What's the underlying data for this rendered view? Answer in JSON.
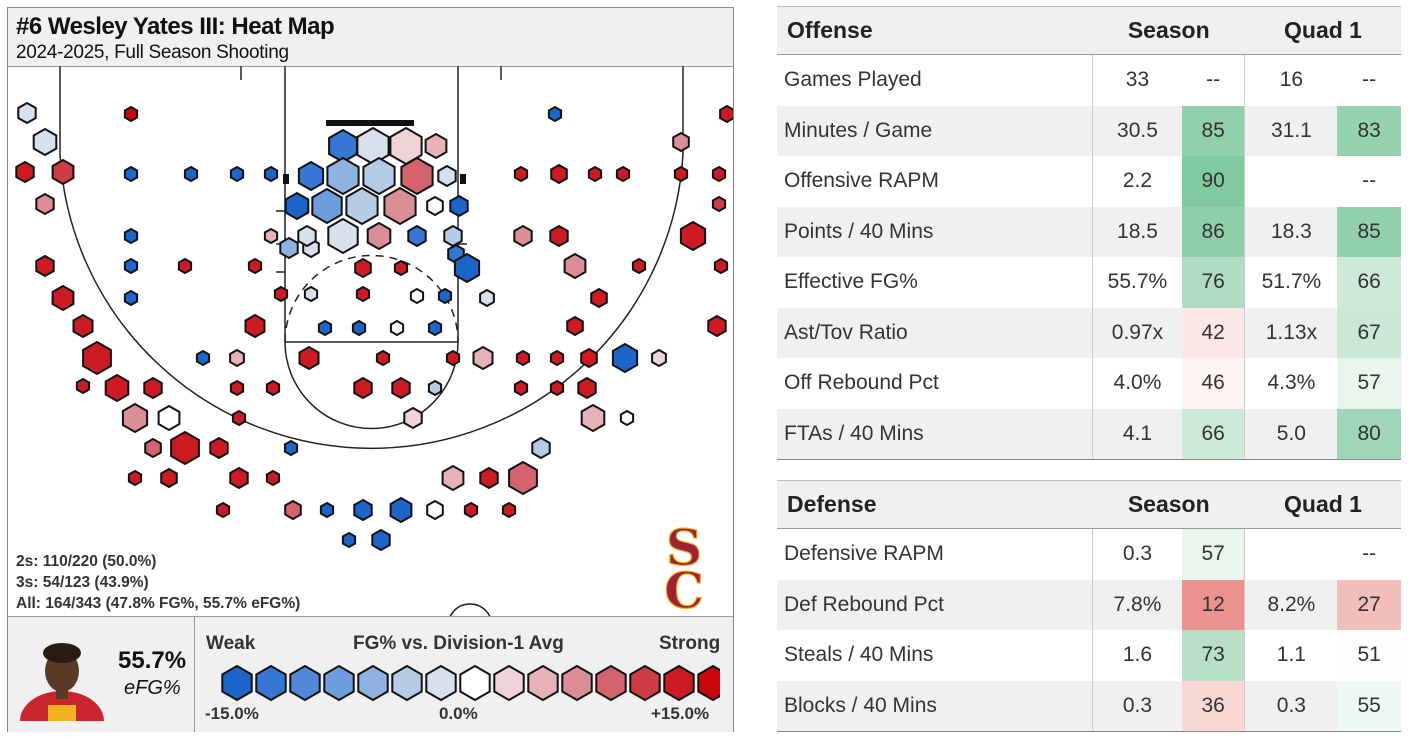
{
  "heatmap": {
    "title": "#6 Wesley Yates III: Heat Map",
    "subtitle": "2024-2025, Full Season Shooting",
    "stat_2s": "2s: 110/220 (50.0%)",
    "stat_3s": "3s: 54/123 (43.9%)",
    "stat_all": "All: 164/343 (47.8% FG%, 55.7% eFG%)",
    "team_logo": "SC",
    "efg_value": "55.7%",
    "efg_label": "eFG%",
    "legend_title": "FG% vs. Division-1 Avg",
    "legend_weak": "Weak",
    "legend_strong": "Strong",
    "legend_min": "-15.0%",
    "legend_mid": "0.0%",
    "legend_max": "+15.0%",
    "palette": [
      "#1d66c9",
      "#3677d3",
      "#5288d8",
      "#6e9cdd",
      "#90b2e0",
      "#b5cbe6",
      "#d6e0ee",
      "#ffffff",
      "#efd3d8",
      "#e6b2b8",
      "#dc8e97",
      "#d5636d",
      "#d03c44",
      "#cc1b22",
      "#c8070e"
    ],
    "colors": {
      "cold": "#1d66c9",
      "hot": "#c8070e",
      "logo": "#9d2235",
      "logo_outline": "#f2b320"
    }
  },
  "chart_data": {
    "type": "heatmap",
    "title": "#6 Wesley Yates III: Heat Map",
    "subtitle": "2024-2025, Full Season Shooting",
    "color_scale": {
      "label": "FG% vs. Division-1 Avg",
      "min": -15.0,
      "max": 15.0,
      "unit": "%"
    },
    "bins_note": "Each hexagon's color encodes FG% vs. Division-1 average; size encodes shot volume.",
    "bins": [
      {
        "zone": "left-corner-deep",
        "v": -3
      },
      {
        "zone": "left-wing-deep",
        "v": 15
      },
      {
        "zone": "top-deep-left",
        "v": 15
      },
      {
        "zone": "top-deep-center",
        "v": -15
      },
      {
        "zone": "right-wing-deep",
        "v": 15
      },
      {
        "zone": "left-corner-3",
        "v": 3
      },
      {
        "zone": "left-corner-3b",
        "v": 12
      },
      {
        "zone": "left-mid",
        "v": -12
      },
      {
        "zone": "paint-left",
        "v": -15
      },
      {
        "zone": "rim",
        "v": -8
      },
      {
        "zone": "rim-right",
        "v": 9
      },
      {
        "zone": "right-mid",
        "v": 14
      },
      {
        "zone": "right-corner-3",
        "v": 12
      },
      {
        "zone": "left-wing-3",
        "v": 15
      },
      {
        "zone": "left-elbow",
        "v": -12
      },
      {
        "zone": "ft-line",
        "v": -10
      },
      {
        "zone": "right-elbow",
        "v": -15
      },
      {
        "zone": "right-wing-3",
        "v": 15
      },
      {
        "zone": "top-key-3",
        "v": 13
      },
      {
        "zone": "top-3-left",
        "v": -12
      },
      {
        "zone": "top-3-right",
        "v": -13
      },
      {
        "zone": "top-3-center",
        "v": 14
      }
    ]
  },
  "offense": {
    "header": {
      "label": "Offense",
      "season": "Season",
      "quad": "Quad 1"
    },
    "rows": [
      {
        "label": "Games Played",
        "season": "33",
        "season_pct": "--",
        "quad": "16",
        "quad_pct": "--"
      },
      {
        "label": "Minutes / Game",
        "season": "30.5",
        "season_pct": "85",
        "quad": "31.1",
        "quad_pct": "83"
      },
      {
        "label": "Offensive RAPM",
        "season": "2.2",
        "season_pct": "90",
        "quad": "",
        "quad_pct": "--"
      },
      {
        "label": "Points / 40 Mins",
        "season": "18.5",
        "season_pct": "86",
        "quad": "18.3",
        "quad_pct": "85"
      },
      {
        "label": "Effective FG%",
        "season": "55.7%",
        "season_pct": "76",
        "quad": "51.7%",
        "quad_pct": "66"
      },
      {
        "label": "Ast/Tov Ratio",
        "season": "0.97x",
        "season_pct": "42",
        "quad": "1.13x",
        "quad_pct": "67"
      },
      {
        "label": "Off Rebound Pct",
        "season": "4.0%",
        "season_pct": "46",
        "quad": "4.3%",
        "quad_pct": "57"
      },
      {
        "label": "FTAs / 40 Mins",
        "season": "4.1",
        "season_pct": "66",
        "quad": "5.0",
        "quad_pct": "80"
      }
    ]
  },
  "defense": {
    "header": {
      "label": "Defense",
      "season": "Season",
      "quad": "Quad 1"
    },
    "rows": [
      {
        "label": "Defensive RAPM",
        "season": "0.3",
        "season_pct": "57",
        "quad": "",
        "quad_pct": "--"
      },
      {
        "label": "Def Rebound Pct",
        "season": "7.8%",
        "season_pct": "12",
        "quad": "8.2%",
        "quad_pct": "27"
      },
      {
        "label": "Steals / 40 Mins",
        "season": "1.6",
        "season_pct": "73",
        "quad": "1.1",
        "quad_pct": "51"
      },
      {
        "label": "Blocks / 40 Mins",
        "season": "0.3",
        "season_pct": "36",
        "quad": "0.3",
        "quad_pct": "55"
      }
    ]
  }
}
